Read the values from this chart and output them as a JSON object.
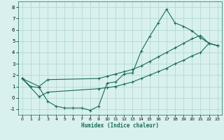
{
  "bg_color": "#d8f0ee",
  "grid_color": "#aed4ce",
  "line_color": "#1a6b5e",
  "xlabel": "Humidex (Indice chaleur)",
  "xlim": [
    -0.5,
    23.5
  ],
  "ylim": [
    -1.5,
    8.5
  ],
  "xticks": [
    0,
    1,
    2,
    3,
    4,
    5,
    6,
    7,
    8,
    9,
    10,
    11,
    12,
    13,
    14,
    15,
    16,
    17,
    18,
    19,
    20,
    21,
    22,
    23
  ],
  "yticks": [
    -1,
    0,
    1,
    2,
    3,
    4,
    5,
    6,
    7,
    8
  ],
  "line1_x": [
    0,
    1,
    2,
    3,
    4,
    5,
    6,
    7,
    8,
    9,
    10,
    11,
    12,
    13,
    14,
    15,
    16,
    17,
    18,
    19,
    20,
    21,
    22,
    23
  ],
  "line1_y": [
    1.7,
    1.0,
    0.9,
    -0.3,
    -0.75,
    -0.9,
    -0.9,
    -0.9,
    -1.1,
    -0.75,
    1.3,
    1.4,
    2.1,
    2.2,
    4.1,
    5.4,
    6.6,
    7.8,
    6.6,
    6.3,
    5.9,
    5.3,
    4.8,
    4.6
  ],
  "line2_x": [
    0,
    2,
    3,
    9,
    10,
    11,
    12,
    13,
    14,
    15,
    16,
    17,
    18,
    19,
    20,
    21,
    22,
    23
  ],
  "line2_y": [
    1.7,
    1.0,
    1.6,
    1.7,
    1.9,
    2.1,
    2.3,
    2.5,
    2.8,
    3.2,
    3.6,
    4.0,
    4.4,
    4.8,
    5.2,
    5.5,
    4.8,
    4.6
  ],
  "line3_x": [
    0,
    2,
    3,
    9,
    10,
    11,
    12,
    13,
    14,
    15,
    16,
    17,
    18,
    19,
    20,
    21,
    22,
    23
  ],
  "line3_y": [
    1.7,
    0.1,
    0.5,
    0.8,
    0.9,
    1.0,
    1.2,
    1.4,
    1.7,
    2.0,
    2.3,
    2.6,
    3.0,
    3.3,
    3.7,
    4.0,
    4.8,
    4.6
  ]
}
